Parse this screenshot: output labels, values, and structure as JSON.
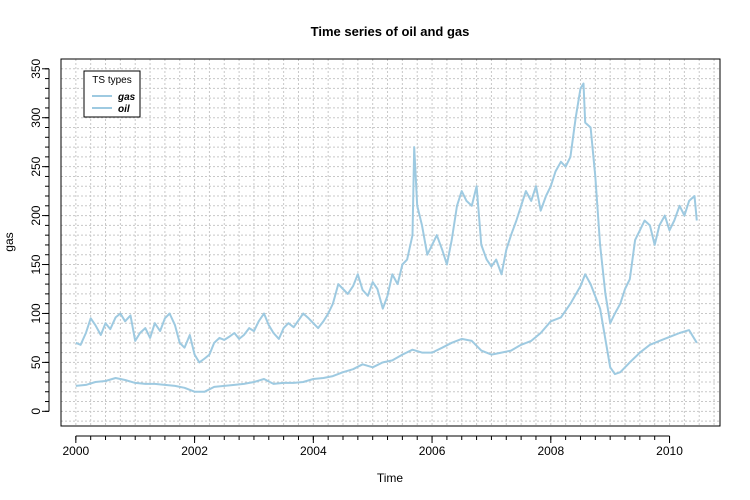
{
  "chart_data": {
    "type": "line",
    "title": "Time series of oil and gas",
    "xlabel": "Time",
    "ylabel": "gas",
    "xlim": [
      1999.75,
      2010.85
    ],
    "ylim": [
      -15,
      360
    ],
    "xticks": [
      2000,
      2002,
      2004,
      2006,
      2008,
      2010
    ],
    "yticks": [
      0,
      50,
      100,
      150,
      200,
      250,
      300,
      350
    ],
    "grid": true,
    "legend": {
      "title": "TS types",
      "position": "top-left"
    },
    "colors": {
      "series": "#9ecae1",
      "grid": "#c8c8c8",
      "axis": "#000000"
    },
    "series": [
      {
        "name": "gas",
        "x": [
          2000.0,
          2000.08,
          2000.17,
          2000.25,
          2000.33,
          2000.42,
          2000.5,
          2000.58,
          2000.67,
          2000.75,
          2000.83,
          2000.92,
          2001.0,
          2001.08,
          2001.17,
          2001.25,
          2001.33,
          2001.42,
          2001.5,
          2001.58,
          2001.67,
          2001.75,
          2001.83,
          2001.92,
          2002.0,
          2002.08,
          2002.17,
          2002.25,
          2002.33,
          2002.42,
          2002.5,
          2002.58,
          2002.67,
          2002.75,
          2002.83,
          2002.92,
          2003.0,
          2003.08,
          2003.17,
          2003.25,
          2003.33,
          2003.42,
          2003.5,
          2003.58,
          2003.67,
          2003.75,
          2003.83,
          2003.92,
          2004.0,
          2004.08,
          2004.17,
          2004.25,
          2004.33,
          2004.42,
          2004.5,
          2004.58,
          2004.67,
          2004.75,
          2004.83,
          2004.92,
          2005.0,
          2005.08,
          2005.17,
          2005.25,
          2005.33,
          2005.42,
          2005.5,
          2005.58,
          2005.67,
          2005.7,
          2005.75,
          2005.83,
          2005.92,
          2006.0,
          2006.08,
          2006.17,
          2006.25,
          2006.33,
          2006.42,
          2006.5,
          2006.58,
          2006.67,
          2006.75,
          2006.83,
          2006.92,
          2007.0,
          2007.08,
          2007.17,
          2007.25,
          2007.33,
          2007.42,
          2007.5,
          2007.58,
          2007.67,
          2007.75,
          2007.83,
          2007.92,
          2008.0,
          2008.08,
          2008.17,
          2008.25,
          2008.33,
          2008.42,
          2008.5,
          2008.55,
          2008.58,
          2008.67,
          2008.75,
          2008.83,
          2008.92,
          2009.0,
          2009.08,
          2009.17,
          2009.25,
          2009.33,
          2009.42,
          2009.5,
          2009.58,
          2009.67,
          2009.75,
          2009.83,
          2009.92,
          2010.0,
          2010.08,
          2010.17,
          2010.25,
          2010.33,
          2010.42,
          2010.46
        ],
        "values": [
          70,
          68,
          80,
          95,
          88,
          78,
          90,
          84,
          96,
          100,
          92,
          98,
          72,
          80,
          85,
          75,
          90,
          82,
          95,
          100,
          88,
          70,
          65,
          78,
          58,
          50,
          54,
          58,
          70,
          75,
          73,
          76,
          80,
          74,
          78,
          85,
          82,
          92,
          100,
          88,
          80,
          74,
          85,
          90,
          86,
          93,
          100,
          95,
          90,
          85,
          92,
          100,
          110,
          130,
          125,
          120,
          128,
          140,
          124,
          118,
          132,
          125,
          105,
          118,
          140,
          130,
          150,
          155,
          180,
          270,
          210,
          190,
          160,
          170,
          180,
          165,
          150,
          175,
          210,
          225,
          215,
          210,
          230,
          170,
          155,
          148,
          155,
          140,
          165,
          180,
          195,
          210,
          225,
          215,
          230,
          205,
          220,
          230,
          245,
          255,
          250,
          260,
          300,
          330,
          335,
          295,
          290,
          240,
          170,
          120,
          90,
          100,
          110,
          125,
          135,
          175,
          185,
          195,
          190,
          170,
          190,
          200,
          185,
          195,
          210,
          200,
          215,
          220,
          195
        ]
      },
      {
        "name": "oil",
        "x": [
          2000.0,
          2000.17,
          2000.33,
          2000.5,
          2000.67,
          2000.83,
          2001.0,
          2001.17,
          2001.33,
          2001.5,
          2001.67,
          2001.83,
          2002.0,
          2002.17,
          2002.33,
          2002.5,
          2002.67,
          2002.83,
          2003.0,
          2003.17,
          2003.33,
          2003.5,
          2003.67,
          2003.83,
          2004.0,
          2004.17,
          2004.33,
          2004.5,
          2004.67,
          2004.83,
          2005.0,
          2005.17,
          2005.33,
          2005.5,
          2005.67,
          2005.83,
          2006.0,
          2006.17,
          2006.33,
          2006.5,
          2006.67,
          2006.83,
          2007.0,
          2007.17,
          2007.33,
          2007.5,
          2007.67,
          2007.83,
          2008.0,
          2008.17,
          2008.33,
          2008.5,
          2008.58,
          2008.67,
          2008.83,
          2009.0,
          2009.08,
          2009.17,
          2009.33,
          2009.5,
          2009.67,
          2009.83,
          2010.0,
          2010.17,
          2010.33,
          2010.46
        ],
        "values": [
          26,
          27,
          30,
          31,
          34,
          32,
          29,
          28,
          28,
          27,
          26,
          24,
          20,
          20,
          25,
          26,
          27,
          28,
          30,
          33,
          28,
          29,
          29,
          30,
          33,
          34,
          36,
          40,
          43,
          48,
          45,
          50,
          52,
          58,
          63,
          60,
          60,
          65,
          70,
          74,
          72,
          62,
          58,
          60,
          62,
          68,
          72,
          80,
          92,
          96,
          110,
          128,
          140,
          130,
          105,
          45,
          38,
          40,
          50,
          60,
          68,
          72,
          76,
          80,
          83,
          70
        ]
      }
    ]
  }
}
